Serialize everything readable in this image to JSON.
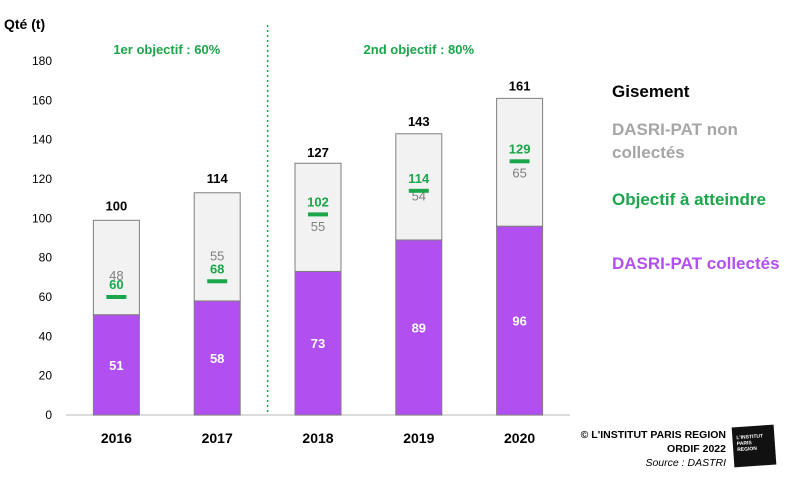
{
  "chart_data": {
    "type": "bar",
    "stacked": true,
    "ylabel": "Qté (t)",
    "ylim": [
      0,
      180
    ],
    "yticks": [
      0,
      20,
      40,
      60,
      80,
      100,
      120,
      140,
      160,
      180
    ],
    "grid": false,
    "categories": [
      "2016",
      "2017",
      "2018",
      "2019",
      "2020"
    ],
    "series": [
      {
        "name": "DASRI-PAT collectés",
        "values": [
          51,
          58,
          73,
          89,
          96
        ],
        "color": "#b24ff0"
      },
      {
        "name": "DASRI-PAT non collectés",
        "values": [
          48,
          55,
          55,
          54,
          65
        ],
        "color": "#f2f2f2"
      }
    ],
    "totals": [
      100,
      114,
      127,
      143,
      161
    ],
    "target": {
      "name": "Objectif à atteindre",
      "values": [
        60,
        68,
        102,
        114,
        129
      ],
      "color": "#1aa64a"
    },
    "phases": [
      {
        "label": "1er objectif : 60%",
        "categories": [
          "2016",
          "2017"
        ]
      },
      {
        "label": "2nd objectif : 80%",
        "categories": [
          "2018",
          "2019",
          "2020"
        ]
      }
    ],
    "legend": {
      "title": "Gisement",
      "not_collected": "DASRI-PAT non collectés",
      "target": "Objectif à atteindre",
      "collected": "DASRI-PAT collectés",
      "placement": "right"
    }
  },
  "credits": {
    "line1": "© L'INSTITUT PARIS REGION",
    "line2": "ORDIF 2022",
    "line3": "Source : DASTRI"
  },
  "logo": {
    "text": "L'INSTITUT PARIS REGION"
  }
}
